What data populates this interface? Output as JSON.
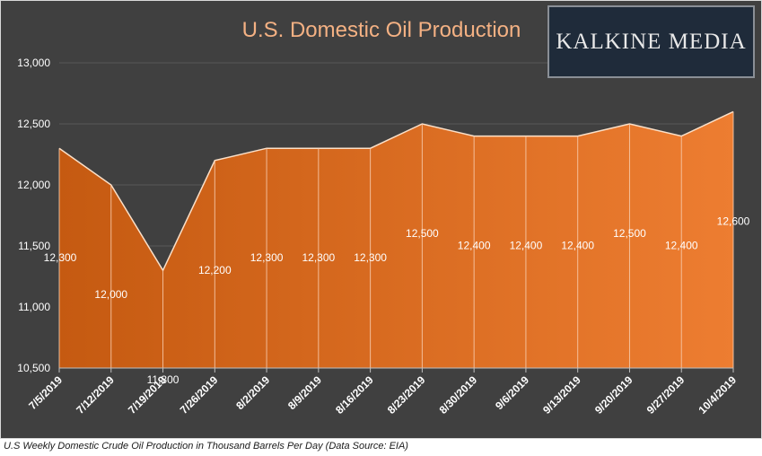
{
  "watermark": "KALKINE MEDIA",
  "caption": "U.S Weekly Domestic Crude Oil Production in Thousand Barrels Per Day (Data Source: EIA)",
  "colors": {
    "background": "#404040",
    "area_dark": "#c55a11",
    "area_light": "#ed7d31",
    "title": "#f4b183"
  },
  "chart_data": {
    "type": "area",
    "title": "U.S. Domestic Oil Production",
    "categories": [
      "7/5/2019",
      "7/12/2019",
      "7/19/2019",
      "7/26/2019",
      "8/2/2019",
      "8/9/2019",
      "8/16/2019",
      "8/23/2019",
      "8/30/2019",
      "9/6/2019",
      "9/13/2019",
      "9/20/2019",
      "9/27/2019",
      "10/4/2019"
    ],
    "series": [
      {
        "values": [
          12300,
          12000,
          11300,
          12200,
          12300,
          12300,
          12300,
          12500,
          12400,
          12400,
          12400,
          12500,
          12400,
          12600
        ]
      }
    ],
    "data_labels": [
      "12,300",
      "12,000",
      "11,300",
      "12,200",
      "12,300",
      "12,300",
      "12,300",
      "12,500",
      "12,400",
      "12,400",
      "12,400",
      "12,500",
      "12,400",
      "12,600"
    ],
    "yticks": [
      "10,500",
      "11,000",
      "11,500",
      "12,000",
      "12,500",
      "13,000"
    ],
    "ytick_values": [
      10500,
      11000,
      11500,
      12000,
      12500,
      13000
    ],
    "ylim": [
      10500,
      13000
    ],
    "grid": true,
    "legend": "none"
  }
}
